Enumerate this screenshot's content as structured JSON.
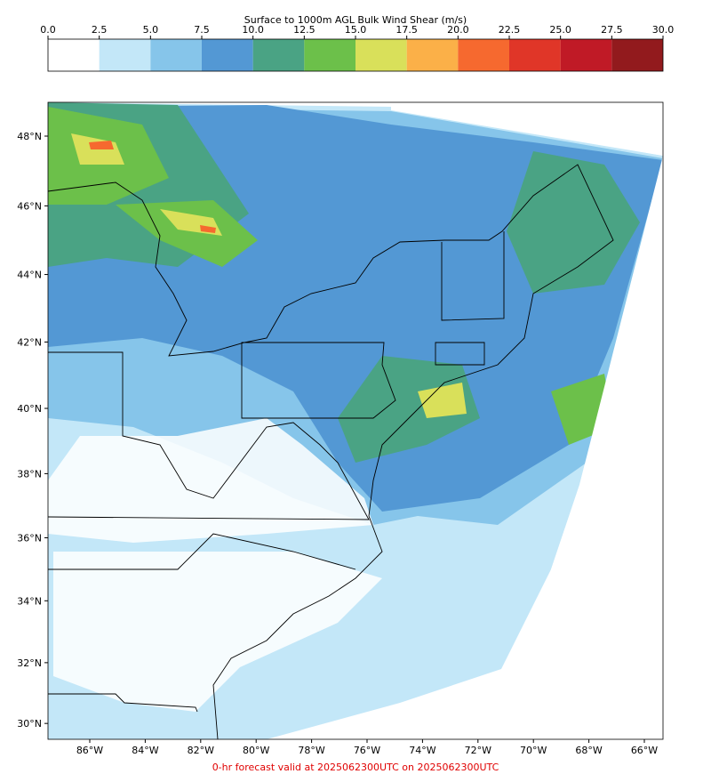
{
  "colorbar": {
    "title": "Surface to 1000m AGL Bulk Wind Shear (m/s)",
    "ticks": [
      {
        "value": 0,
        "label": "0.0"
      },
      {
        "value": 2.5,
        "label": "2.5"
      },
      {
        "value": 5,
        "label": "5.0"
      },
      {
        "value": 7.5,
        "label": "7.5"
      },
      {
        "value": 10,
        "label": "10.0"
      },
      {
        "value": 12.5,
        "label": "12.5"
      },
      {
        "value": 15,
        "label": "15.0"
      },
      {
        "value": 17.5,
        "label": "17.5"
      },
      {
        "value": 20,
        "label": "20.0"
      },
      {
        "value": 22.5,
        "label": "22.5"
      },
      {
        "value": 25,
        "label": "25.0"
      },
      {
        "value": 27.5,
        "label": "27.5"
      },
      {
        "value": 30,
        "label": "30.0"
      }
    ],
    "colors": [
      "#ffffff",
      "#c3e7f8",
      "#86c5ea",
      "#5398d4",
      "#4aa384",
      "#6cc04a",
      "#d9e05a",
      "#fbb048",
      "#f6692f",
      "#e03628",
      "#c01a26",
      "#921a1d"
    ]
  },
  "map": {
    "lat_labels": [
      {
        "value": 48,
        "label": "48°N"
      },
      {
        "value": 46,
        "label": "46°N"
      },
      {
        "value": 44,
        "label": "44°N"
      },
      {
        "value": 42,
        "label": "42°N"
      },
      {
        "value": 40,
        "label": "40°N"
      },
      {
        "value": 38,
        "label": "38°N"
      },
      {
        "value": 36,
        "label": "36°N"
      },
      {
        "value": 34,
        "label": "34°N"
      },
      {
        "value": 32,
        "label": "32°N"
      },
      {
        "value": 30,
        "label": "30°N"
      }
    ],
    "lon_labels": [
      {
        "value": -86,
        "label": "86°W"
      },
      {
        "value": -84,
        "label": "84°W"
      },
      {
        "value": -82,
        "label": "82°W"
      },
      {
        "value": -80,
        "label": "80°W"
      },
      {
        "value": -78,
        "label": "78°W"
      },
      {
        "value": -76,
        "label": "76°W"
      },
      {
        "value": -74,
        "label": "74°W"
      },
      {
        "value": -72,
        "label": "72°W"
      },
      {
        "value": -70,
        "label": "70°W"
      },
      {
        "value": -68,
        "label": "68°W"
      },
      {
        "value": -66,
        "label": "66°W"
      }
    ]
  },
  "footer": "0-hr forecast valid at 2025062300UTC on 2025062300UTC"
}
